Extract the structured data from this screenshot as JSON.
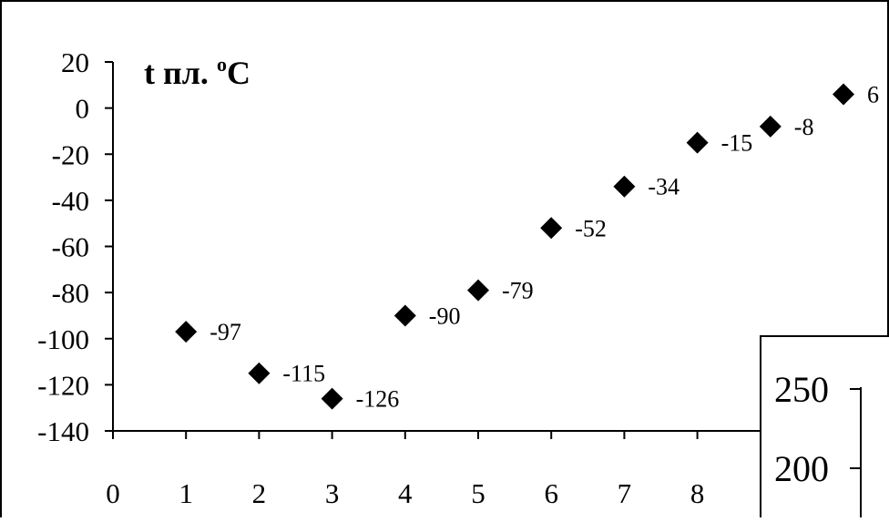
{
  "chart_data": [
    {
      "type": "scatter",
      "title": "t пл. ",
      "title_degree": "o",
      "title_unit": "C",
      "xlim": [
        0,
        10
      ],
      "ylim": [
        -140,
        20
      ],
      "x_ticks": [
        0,
        1,
        2,
        3,
        4,
        5,
        6,
        7,
        8
      ],
      "y_ticks": [
        20,
        0,
        -20,
        -40,
        -60,
        -80,
        -100,
        -120,
        -140
      ],
      "marker": "diamond",
      "marker_color": "#000000",
      "grid": false,
      "series": [
        {
          "x": [
            1,
            2,
            3,
            4,
            5,
            6,
            7,
            8,
            9,
            10
          ],
          "y": [
            -97,
            -115,
            -126,
            -90,
            -79,
            -52,
            -34,
            -15,
            -8,
            6
          ],
          "labels": [
            "-97",
            "-115",
            "-126",
            "-90",
            "-79",
            "-52",
            "-34",
            "-15",
            "-8",
            "6"
          ]
        }
      ]
    },
    {
      "type": "scatter",
      "partial": true,
      "y_ticks_visible": [
        250,
        200
      ]
    }
  ]
}
